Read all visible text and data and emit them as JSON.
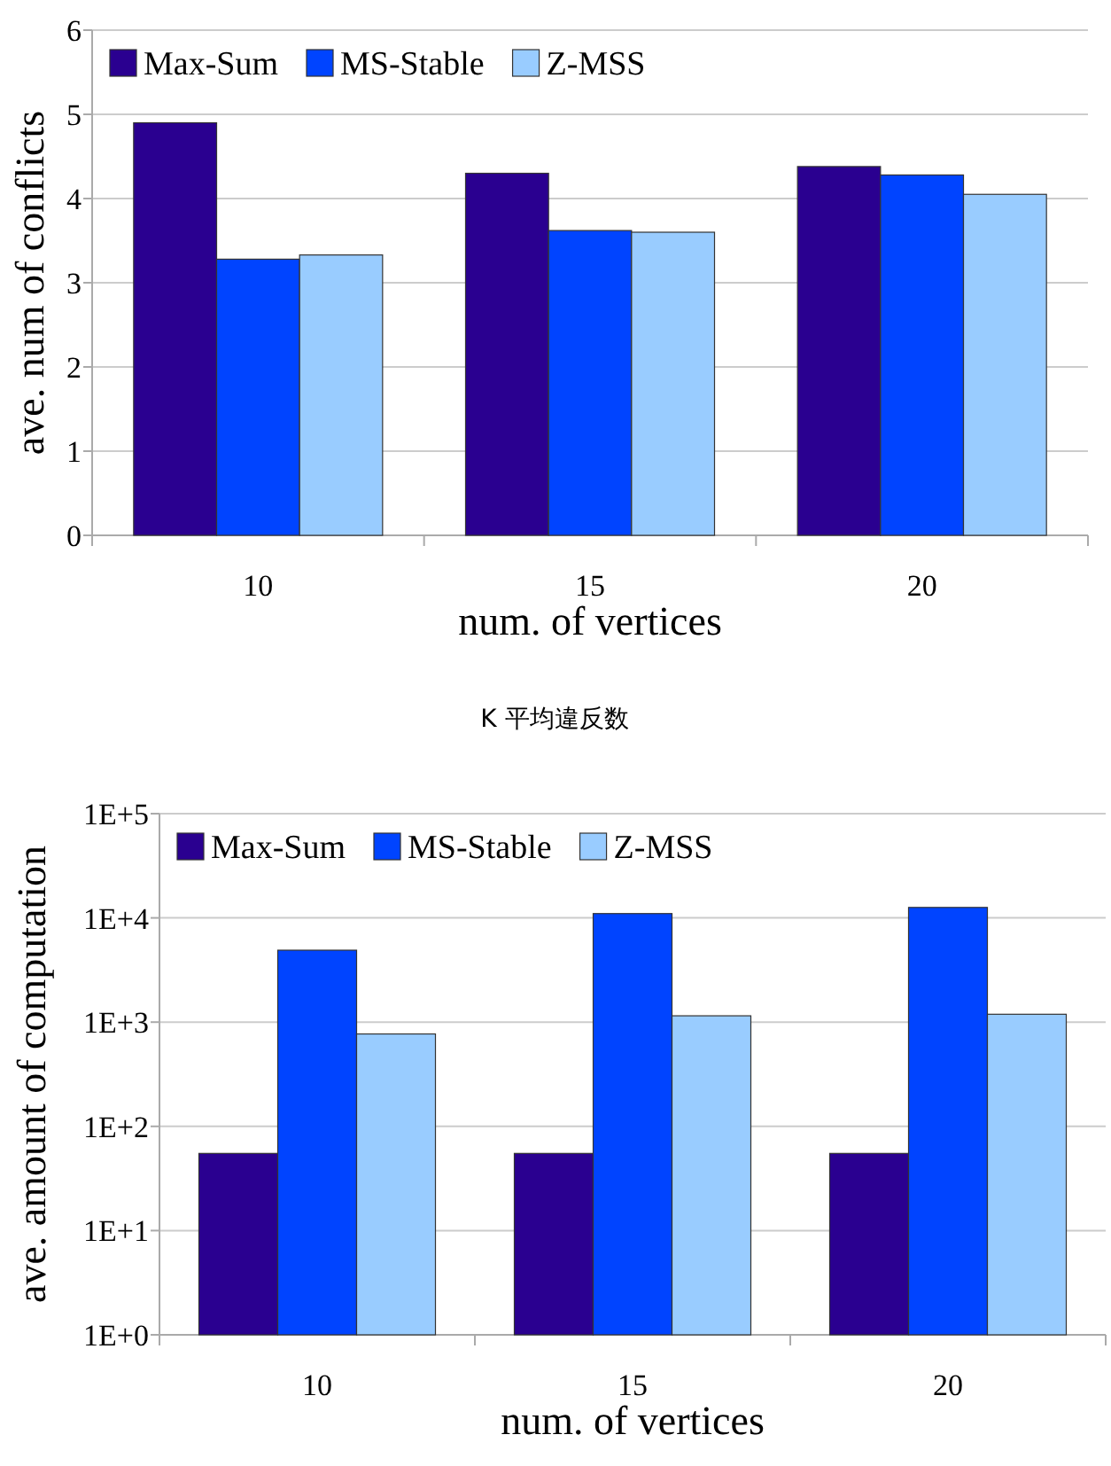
{
  "chart_data": [
    {
      "type": "bar",
      "xlabel": "num. of vertices",
      "ylabel": "ave. num of conflicts",
      "categories": [
        "10",
        "15",
        "20"
      ],
      "series": [
        {
          "name": "Max-Sum",
          "color": "#2a0090",
          "values": [
            4.9,
            4.3,
            4.38
          ]
        },
        {
          "name": "MS-Stable",
          "color": "#0044ff",
          "values": [
            3.28,
            3.62,
            4.28
          ]
        },
        {
          "name": "Z-MSS",
          "color": "#99ccff",
          "values": [
            3.33,
            3.6,
            4.05
          ]
        }
      ],
      "ylim": [
        0,
        6
      ],
      "yticks": [
        0,
        1,
        2,
        3,
        4,
        5,
        6
      ],
      "grid": "y",
      "legend": "top left",
      "annotations": [
        "K 平均違反数"
      ]
    },
    {
      "type": "bar",
      "xlabel": "num. of vertices",
      "ylabel": "ave. amount of computation",
      "categories": [
        "10",
        "15",
        "20"
      ],
      "series": [
        {
          "name": "Max-Sum",
          "color": "#2a0090",
          "values": [
            55,
            55,
            55
          ]
        },
        {
          "name": "MS-Stable",
          "color": "#0044ff",
          "values": [
            4900,
            11000,
            12600
          ]
        },
        {
          "name": "Z-MSS",
          "color": "#99ccff",
          "values": [
            770,
            1150,
            1190
          ]
        }
      ],
      "log": "y",
      "ylim": [
        1,
        100000
      ],
      "yticks": [
        {
          "value": 1,
          "label": "1E+0"
        },
        {
          "value": 10,
          "label": "1E+1"
        },
        {
          "value": 100,
          "label": "1E+2"
        },
        {
          "value": 1000,
          "label": "1E+3"
        },
        {
          "value": 10000,
          "label": "1E+4"
        },
        {
          "value": 100000,
          "label": "1E+5"
        }
      ],
      "grid": "y",
      "legend": "top left"
    }
  ]
}
